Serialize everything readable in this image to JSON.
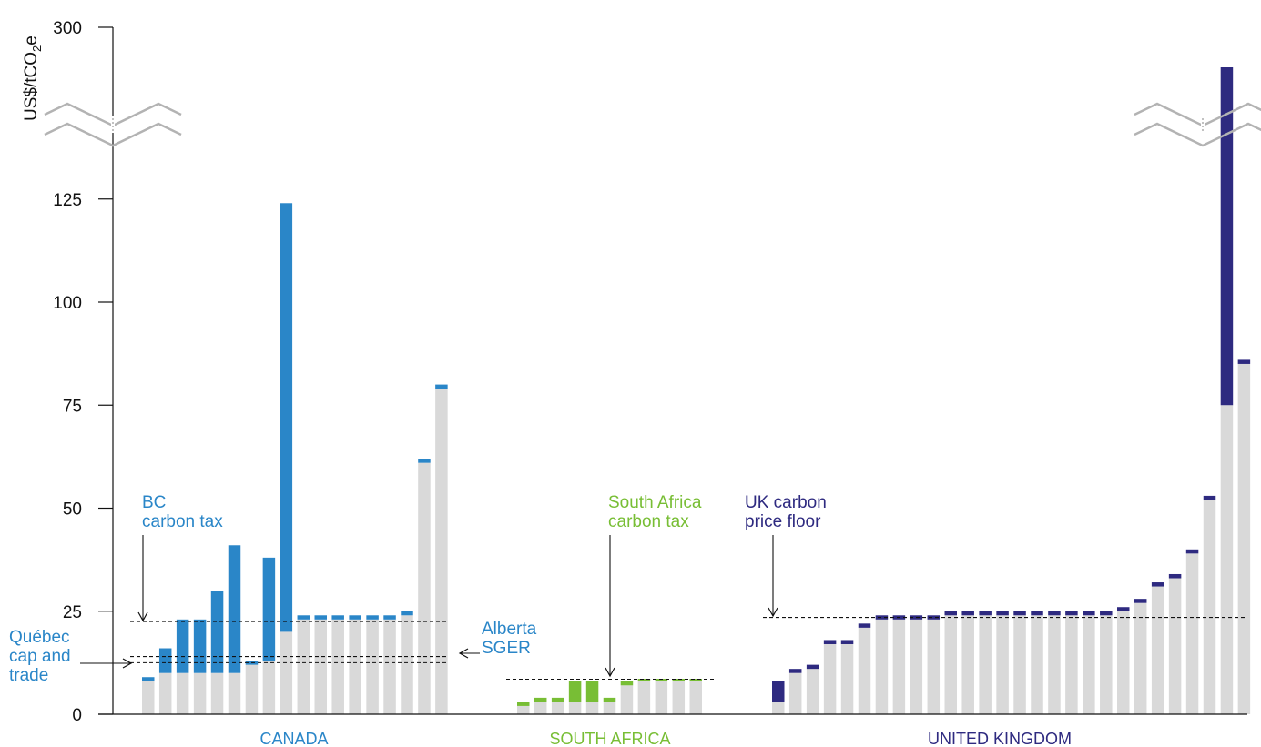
{
  "chart_data": {
    "type": "bar",
    "stacked": true,
    "ylabel": "US$/tCO₂e",
    "ylabel_parts": {
      "base": "US$/tCO",
      "sub": "2",
      "tail": "e"
    },
    "ylim": [
      0,
      300
    ],
    "axis_break": {
      "from": 130,
      "to": 290
    },
    "yticks": [
      "0",
      "25",
      "50",
      "75",
      "100",
      "125",
      "300"
    ],
    "ytick_values": [
      0,
      25,
      50,
      75,
      100,
      125,
      300
    ],
    "colors": {
      "base": "#d9d9d9",
      "CANADA": "#2a86c8",
      "SOUTH AFRICA": "#78be35",
      "UNITED KINGDOM": "#2e2a80"
    },
    "groups": [
      {
        "name": "CANADA",
        "base": [
          8,
          10,
          10,
          10,
          10,
          10,
          12,
          13,
          20,
          23,
          23,
          23,
          23,
          23,
          23,
          24,
          61,
          79
        ],
        "price": [
          1,
          6,
          13,
          13,
          20,
          31,
          1,
          25,
          104,
          1,
          1,
          1,
          1,
          1,
          1,
          1,
          1,
          1
        ]
      },
      {
        "name": "SOUTH AFRICA",
        "base": [
          2,
          3,
          3,
          3,
          3,
          3,
          7,
          8,
          8,
          8,
          8
        ],
        "price": [
          1,
          1,
          1,
          5,
          5,
          1,
          1,
          0.6,
          0.6,
          0.6,
          0.6
        ]
      },
      {
        "name": "UNITED KINGDOM",
        "base": [
          3,
          10,
          11,
          17,
          17,
          21,
          23,
          23,
          23,
          23,
          24,
          24,
          24,
          24,
          24,
          24,
          24,
          24,
          24,
          24,
          25,
          27,
          31,
          33,
          39,
          52,
          75,
          85
        ],
        "price": [
          5,
          1,
          1,
          1,
          1,
          1,
          1,
          1,
          1,
          1,
          1,
          1,
          1,
          1,
          1,
          1,
          1,
          1,
          1,
          1,
          1,
          1,
          1,
          1,
          1,
          1,
          300,
          1
        ]
      }
    ],
    "reference_lines": [
      {
        "name": "BC carbon tax",
        "group": "CANADA",
        "value": 22.5
      },
      {
        "name": "Alberta SGER",
        "group": "CANADA",
        "value": 14
      },
      {
        "name": "Québec cap and trade",
        "group": "CANADA",
        "value": 12.5
      },
      {
        "name": "South Africa carbon tax",
        "group": "SOUTH AFRICA",
        "value": 8.5
      },
      {
        "name": "UK carbon price floor",
        "group": "UNITED KINGDOM",
        "value": 23.5
      }
    ],
    "annotations": [
      {
        "group": "CANADA",
        "lines": [
          "BC",
          "carbon tax"
        ]
      },
      {
        "group": "CANADA",
        "lines": [
          "Alberta",
          "SGER"
        ]
      },
      {
        "group": "CANADA",
        "lines": [
          "Québec",
          "cap and",
          "trade"
        ]
      },
      {
        "group": "SOUTH AFRICA",
        "lines": [
          "South Africa",
          "carbon tax"
        ]
      },
      {
        "group": "UNITED KINGDOM",
        "lines": [
          "UK carbon",
          "price floor"
        ]
      }
    ]
  }
}
